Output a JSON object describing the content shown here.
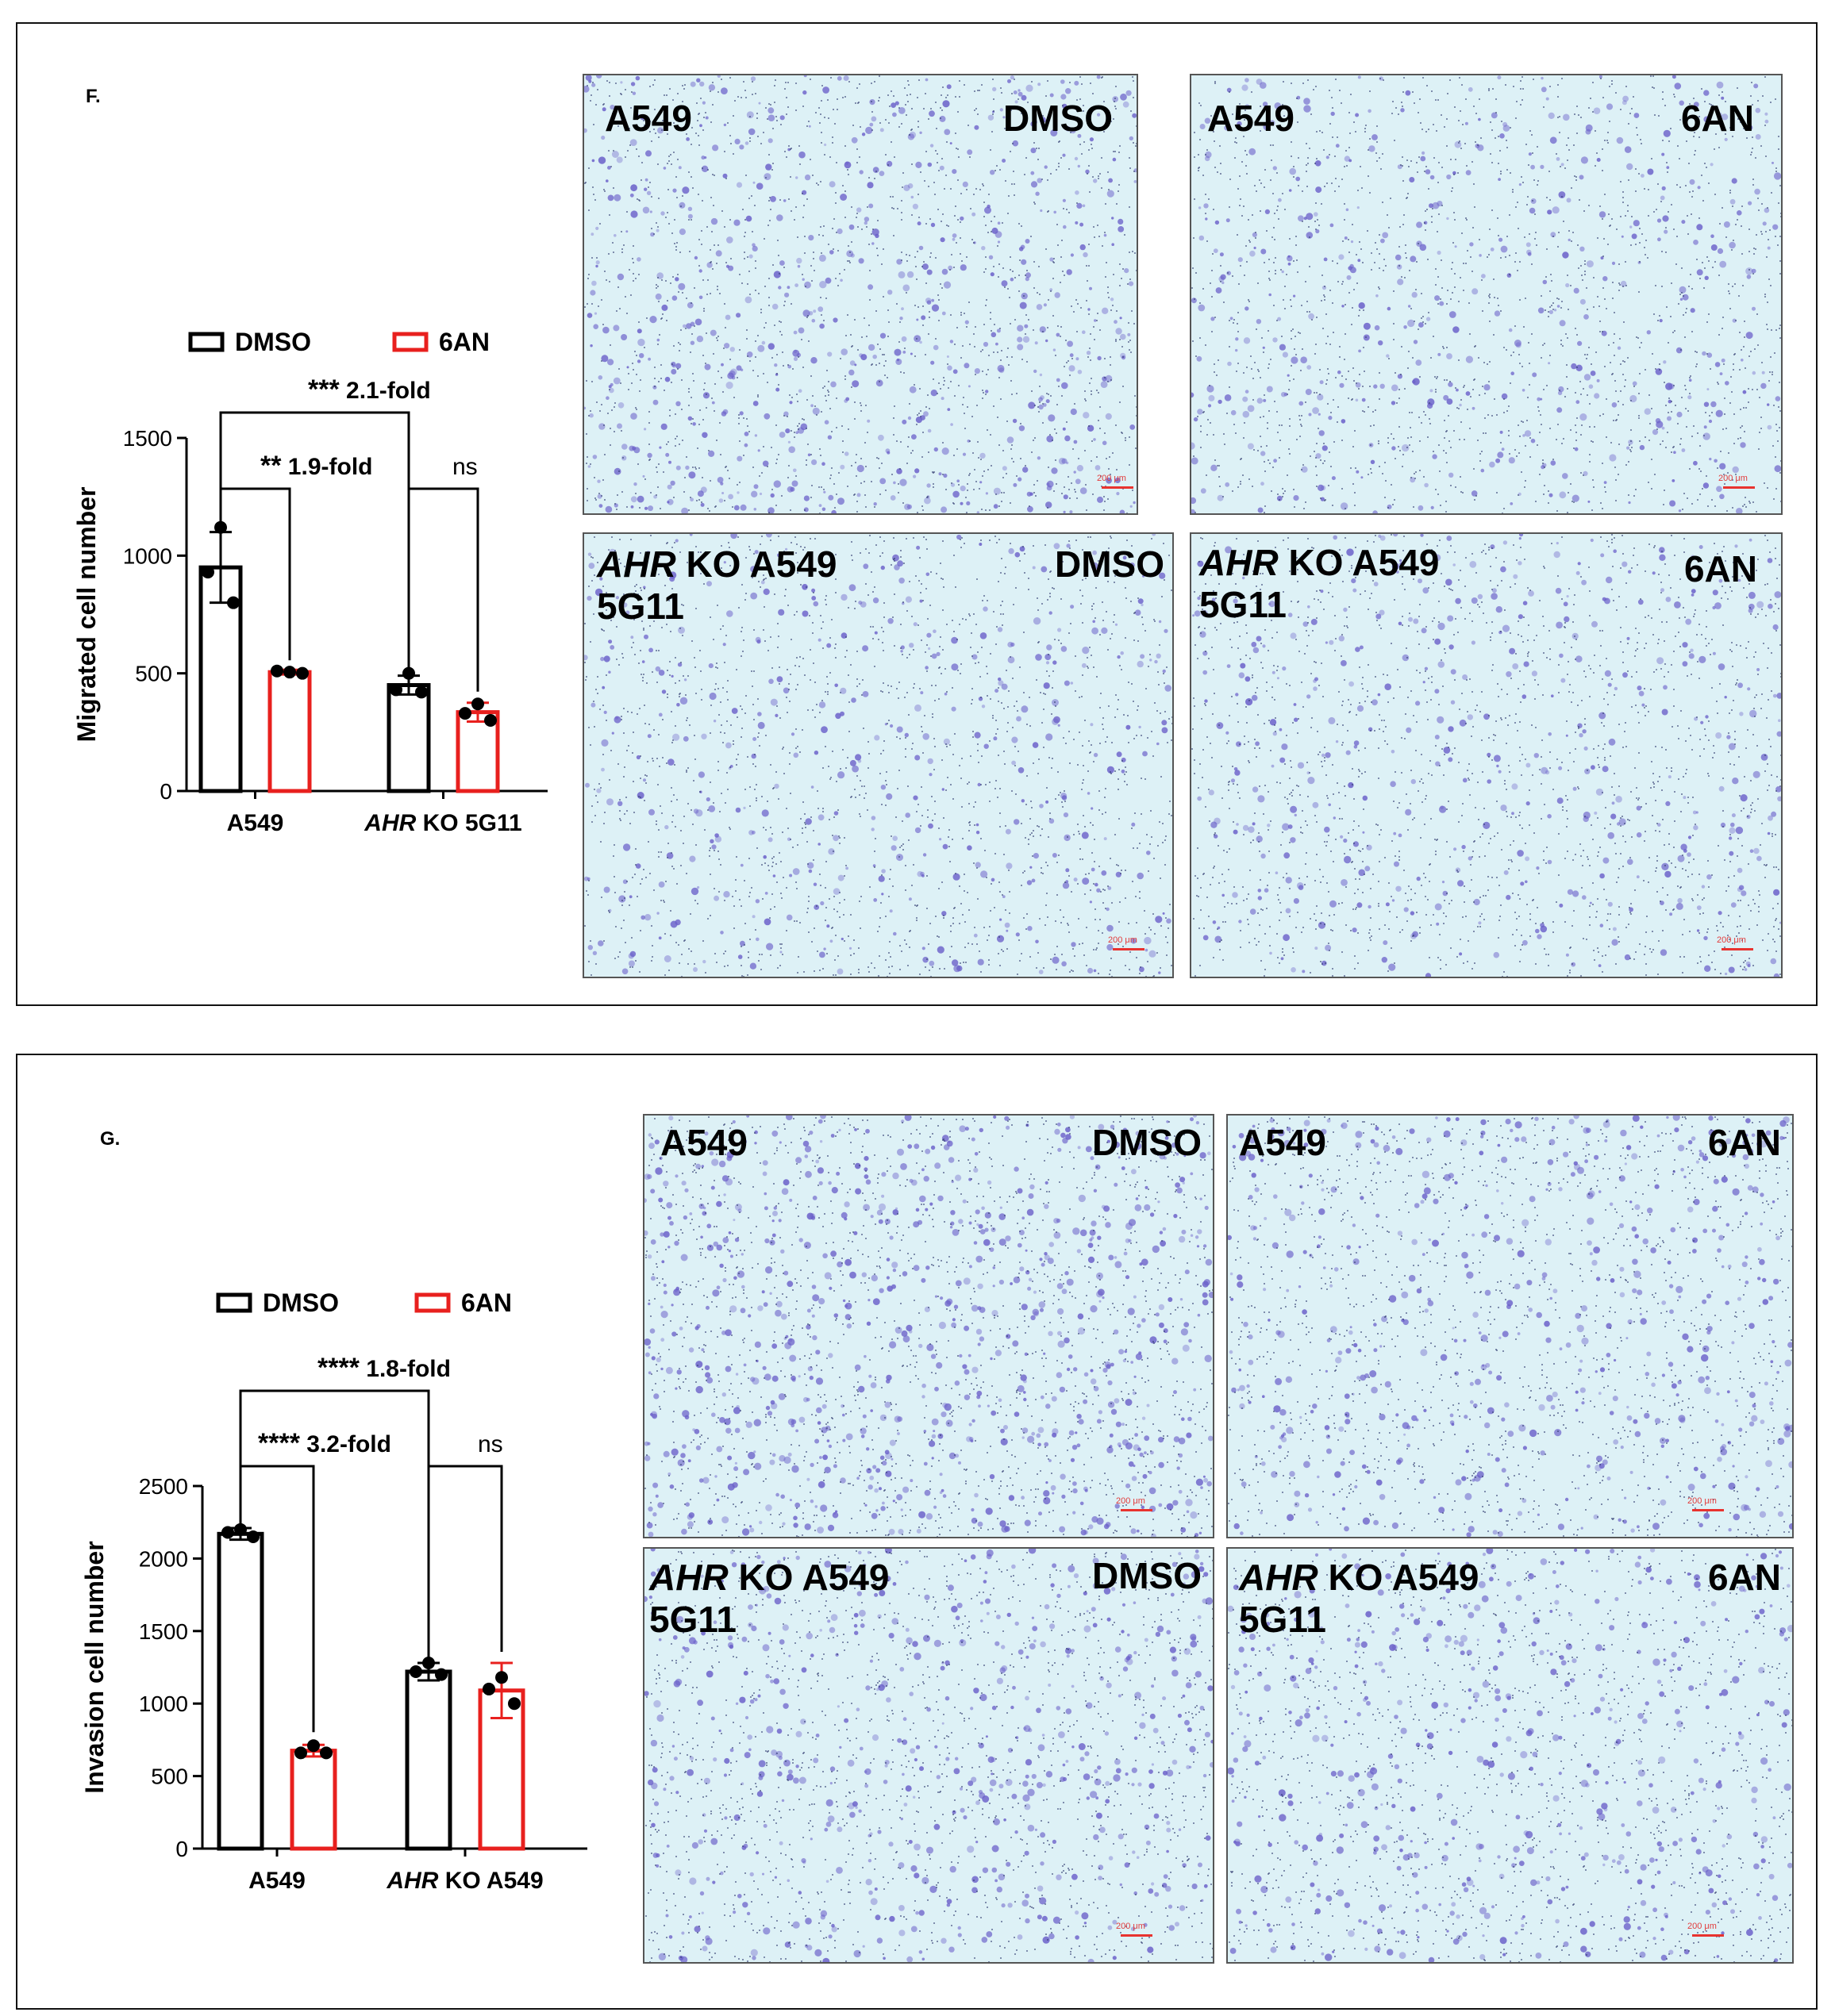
{
  "panels": [
    {
      "id": "F",
      "letter": "F.",
      "chart_data": {
        "type": "bar",
        "title": "",
        "xlabel": "",
        "ylabel": "Migrated cell number",
        "ylim": [
          0,
          1500
        ],
        "yticks": [
          0,
          500,
          1000,
          1500
        ],
        "categories": [
          {
            "text": "A549",
            "italic_prefix": ""
          },
          {
            "text": " KO 5G11",
            "italic_prefix": "AHR"
          }
        ],
        "series": [
          {
            "name": "DMSO",
            "color": "#000000",
            "values": [
              950,
              450
            ],
            "errors": [
              150,
              40
            ],
            "points": [
              [
                1120,
                930,
                800
              ],
              [
                500,
                430,
                420
              ]
            ]
          },
          {
            "name": "6AN",
            "color": "#e8201e",
            "values": [
              505,
              335
            ],
            "errors": [
              10,
              40
            ],
            "points": [
              [
                505,
                510,
                500
              ],
              [
                370,
                330,
                300
              ]
            ]
          }
        ],
        "legend": "top",
        "comparisons": [
          {
            "from": [
              0,
              0
            ],
            "to": [
              1,
              0
            ],
            "stars": "***",
            "label": "2.1-fold"
          },
          {
            "from": [
              0,
              0
            ],
            "to": [
              0,
              1
            ],
            "stars": "**",
            "label": "1.9-fold"
          },
          {
            "from": [
              1,
              0
            ],
            "to": [
              1,
              1
            ],
            "stars": "",
            "label": "ns"
          }
        ]
      },
      "images": [
        {
          "left": "A549",
          "left_italic": "",
          "left2": "",
          "right": "DMSO",
          "scale": "200 μm"
        },
        {
          "left": "A549",
          "left_italic": "",
          "left2": "",
          "right": "6AN",
          "scale": "200 μm"
        },
        {
          "left": " KO A549",
          "left_italic": "AHR",
          "left2": "5G11",
          "right": "DMSO",
          "scale": "200 μm"
        },
        {
          "left": " KO A549",
          "left_italic": "AHR",
          "left2": "5G11",
          "right": "6AN",
          "scale": "200 μm"
        }
      ]
    },
    {
      "id": "G",
      "letter": "G.",
      "chart_data": {
        "type": "bar",
        "title": "",
        "xlabel": "",
        "ylabel": "Invasion cell number",
        "ylim": [
          0,
          2500
        ],
        "yticks": [
          0,
          500,
          1000,
          1500,
          2000,
          2500
        ],
        "categories": [
          {
            "text": "A549",
            "italic_prefix": ""
          },
          {
            "text": " KO A549",
            "italic_prefix": "AHR"
          }
        ],
        "series": [
          {
            "name": "DMSO",
            "color": "#000000",
            "values": [
              2170,
              1220
            ],
            "errors": [
              40,
              60
            ],
            "points": [
              [
                2200,
                2180,
                2150
              ],
              [
                1280,
                1220,
                1200
              ]
            ]
          },
          {
            "name": "6AN",
            "color": "#e8201e",
            "values": [
              675,
              1090
            ],
            "errors": [
              40,
              190
            ],
            "points": [
              [
                710,
                660,
                660
              ],
              [
                1180,
                1100,
                1000
              ]
            ]
          }
        ],
        "legend": "top",
        "comparisons": [
          {
            "from": [
              0,
              0
            ],
            "to": [
              1,
              0
            ],
            "stars": "****",
            "label": "1.8-fold"
          },
          {
            "from": [
              0,
              0
            ],
            "to": [
              0,
              1
            ],
            "stars": "****",
            "label": "3.2-fold"
          },
          {
            "from": [
              1,
              0
            ],
            "to": [
              1,
              1
            ],
            "stars": "",
            "label": "ns"
          }
        ]
      },
      "images": [
        {
          "left": "A549",
          "left_italic": "",
          "left2": "",
          "right": "DMSO",
          "scale": "200 μm"
        },
        {
          "left": "A549",
          "left_italic": "",
          "left2": "",
          "right": "6AN",
          "scale": "200 μm"
        },
        {
          "left": " KO A549",
          "left_italic": "AHR",
          "left2": "5G11",
          "right": "DMSO",
          "scale": "200 μm"
        },
        {
          "left": " KO A549",
          "left_italic": "AHR",
          "left2": "5G11",
          "right": "6AN",
          "scale": "200 μm"
        }
      ]
    }
  ]
}
